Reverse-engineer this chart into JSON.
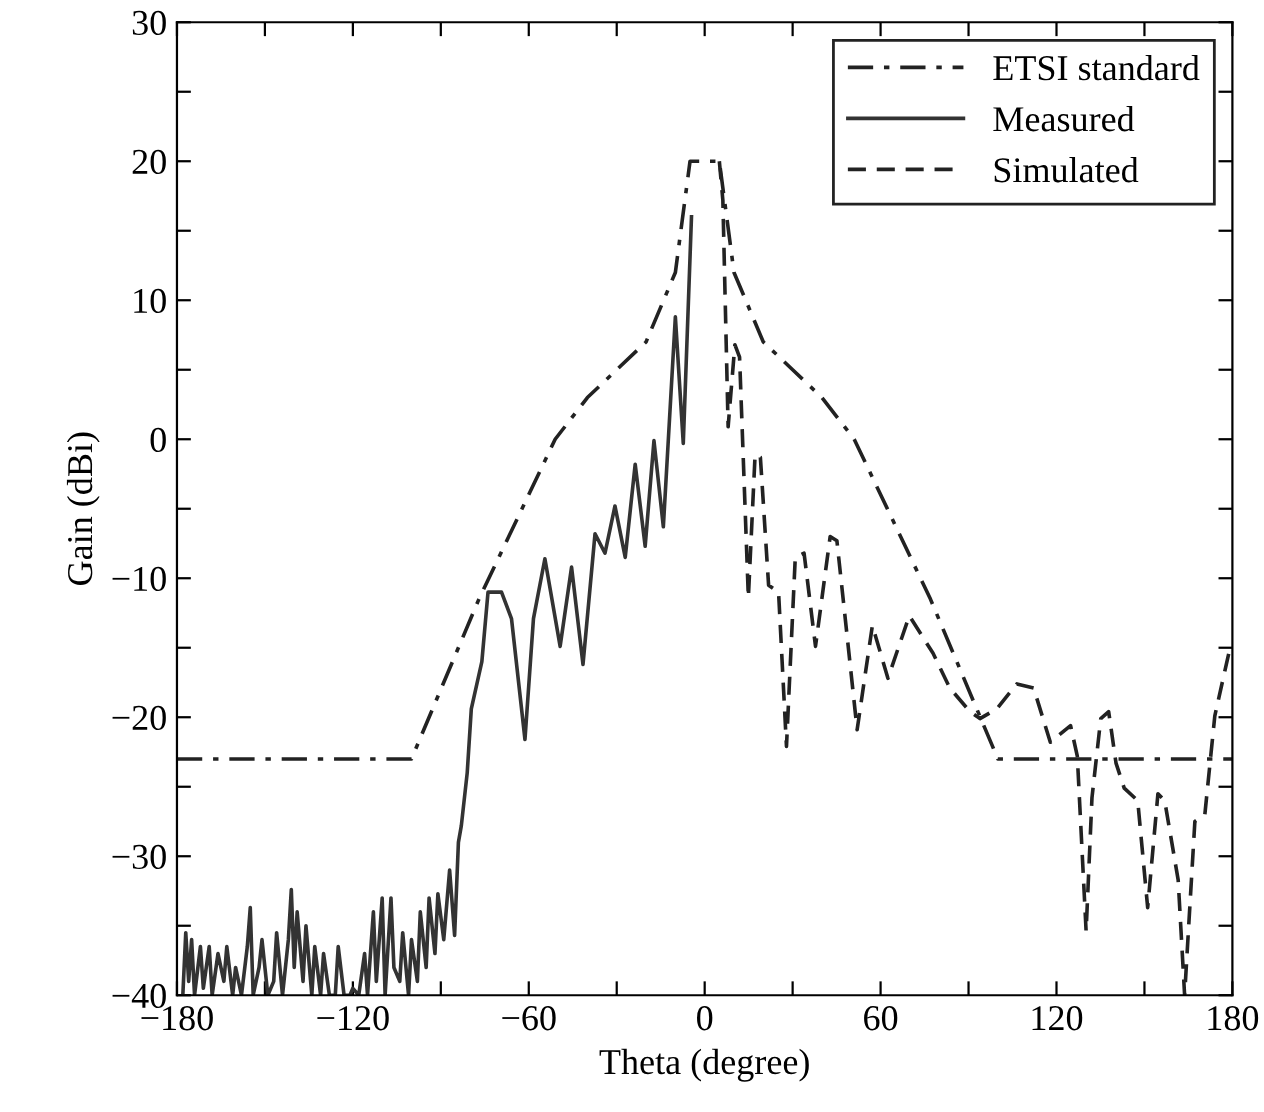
{
  "chart_data": {
    "type": "line",
    "xlabel": "Theta (degree)",
    "ylabel": "Gain (dBi)",
    "xlim": [
      -180,
      180
    ],
    "ylim": [
      -40,
      30
    ],
    "xticks": [
      -180,
      {
        "value": -150,
        "label": null
      },
      -120,
      {
        "value": -90,
        "label": null
      },
      -60,
      {
        "value": -30,
        "label": null
      },
      0,
      {
        "value": 30,
        "label": null
      },
      60,
      {
        "value": 90,
        "label": null
      },
      120,
      {
        "value": 150,
        "label": null
      },
      180
    ],
    "yticks": [
      -40,
      {
        "value": -35,
        "label": null
      },
      -30,
      {
        "value": -25,
        "label": null
      },
      -20,
      {
        "value": -15,
        "label": null
      },
      -10,
      {
        "value": -5,
        "label": null
      },
      0,
      {
        "value": 5,
        "label": null
      },
      10,
      {
        "value": 15,
        "label": null
      },
      20,
      {
        "value": 25,
        "label": null
      },
      30
    ],
    "grid": false,
    "legend": "top right",
    "marker": "none",
    "series": [
      {
        "name": "ETSI standard",
        "color": "#222222",
        "line_style": "dashdot",
        "x": [
          -180,
          -100,
          -77,
          -51,
          -40,
          -30,
          -20,
          -10,
          -5,
          5,
          10,
          20,
          30,
          40,
          51,
          77,
          100,
          180
        ],
        "values": [
          -23,
          -23,
          -11.5,
          0,
          3,
          5,
          7,
          12,
          20,
          20,
          12,
          7,
          5,
          3,
          0,
          -11.5,
          -23,
          -23
        ]
      },
      {
        "name": "Measured",
        "color": "#333333",
        "line_style": "solid",
        "x": [
          -178,
          -177,
          -176,
          -175,
          -174,
          -172,
          -171,
          -169,
          -168,
          -166,
          -164,
          -163,
          -161,
          -160,
          -158,
          -156,
          -155,
          -154,
          -152,
          -151,
          -149,
          -147,
          -146,
          -144,
          -142,
          -141,
          -140,
          -139,
          -137,
          -136,
          -134,
          -133,
          -131,
          -130,
          -128,
          -126,
          -125,
          -123,
          -121,
          -120,
          -118,
          -116,
          -115,
          -113,
          -112,
          -110,
          -109,
          -107,
          -106,
          -104,
          -103,
          -101,
          -100,
          -98,
          -97,
          -95,
          -94,
          -92,
          -91,
          -89,
          -87,
          -85.3,
          -84,
          -83,
          -81,
          -79.6,
          -76,
          -73.9,
          -69.3,
          -65.9,
          -61.3,
          -58.4,
          -54.5,
          -49.3,
          -45.4,
          -41.5,
          -37.4,
          -34,
          -30.6,
          -27.1,
          -23.7,
          -20.3,
          -17.3,
          -14.1,
          -10,
          -7.3,
          -4.5
        ],
        "values": [
          -40,
          -35.5,
          -39,
          -36,
          -40,
          -36.5,
          -39.5,
          -36.5,
          -40,
          -37,
          -39,
          -36.5,
          -40,
          -38,
          -40,
          -36.5,
          -33.7,
          -40,
          -38,
          -36,
          -40,
          -39,
          -35.5,
          -40,
          -36,
          -32.4,
          -38,
          -34,
          -39,
          -35,
          -40,
          -36.5,
          -40,
          -37,
          -40,
          -40,
          -36.5,
          -40,
          -40,
          -39.5,
          -40,
          -37,
          -40,
          -34,
          -39,
          -33,
          -40,
          -33,
          -38,
          -39,
          -35.5,
          -40,
          -36,
          -39,
          -34,
          -38,
          -33,
          -37,
          -32.7,
          -36,
          -31,
          -35.7,
          -29,
          -27.8,
          -24,
          -19.4,
          -16,
          -11,
          -11,
          -12.9,
          -21.6,
          -12.9,
          -8.6,
          -14.9,
          -9.2,
          -16.2,
          -6.8,
          -8.2,
          -4.8,
          -8.5,
          -1.8,
          -7.7,
          -0.1,
          -6.3,
          8.8,
          -0.3,
          16
        ]
      },
      {
        "name": "Simulated",
        "color": "#222222",
        "line_style": "dashed",
        "x": [
          5,
          6.2,
          8,
          10.3,
          11.9,
          14.9,
          17.2,
          19,
          21.8,
          25.2,
          27.9,
          30.9,
          33.9,
          37.8,
          42.8,
          45.1,
          52,
          57.2,
          62.5,
          69.8,
          77.9,
          83.6,
          90.5,
          93.9,
          99.6,
          106.5,
          112.2,
          117.9,
          124.8,
          127.1,
          130.1,
          132.1,
          135.1,
          137.8,
          140.3,
          143.1,
          147.7,
          151.1,
          154.6,
          156.9,
          161.5,
          163.7,
          167.2,
          170.6,
          174,
          179.3
        ],
        "values": [
          20,
          17.2,
          0.9,
          6.8,
          5.9,
          -11.4,
          -1.1,
          -1.3,
          -10.5,
          -11,
          -22.1,
          -8.5,
          -8.2,
          -14.9,
          -7,
          -7.3,
          -20.9,
          -13.4,
          -17.2,
          -12.7,
          -15.4,
          -17.9,
          -19.6,
          -20.1,
          -19.4,
          -17.6,
          -17.9,
          -21.8,
          -20.6,
          -22.8,
          -35.4,
          -25.8,
          -20.1,
          -19.6,
          -23.3,
          -25.1,
          -26,
          -33.7,
          -25.5,
          -26,
          -31.7,
          -40,
          -27.5,
          -27,
          -19.9,
          -14.9
        ]
      }
    ]
  }
}
